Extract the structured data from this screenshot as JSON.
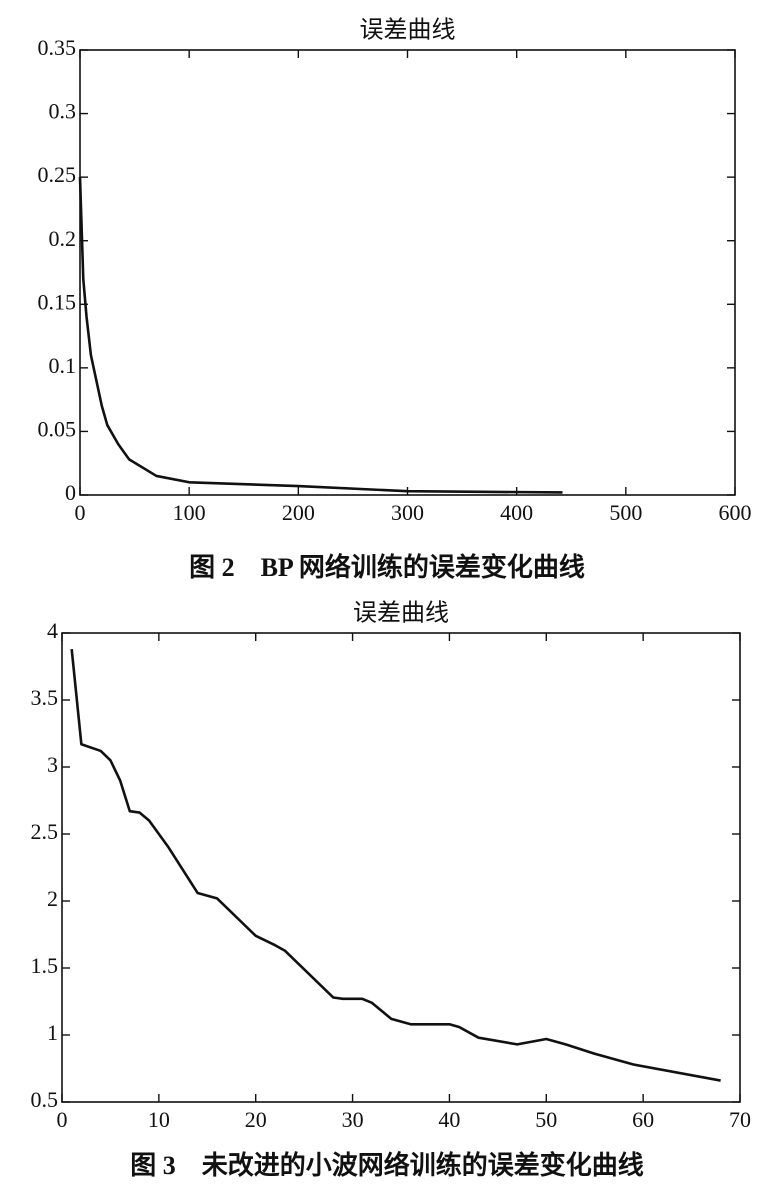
{
  "chart_data": [
    {
      "type": "line",
      "title": "误差曲线",
      "caption": "图 2　BP 网络训练的误差变化曲线",
      "x": [
        0,
        3,
        6,
        10,
        15,
        20,
        25,
        35,
        45,
        70,
        100,
        200,
        300,
        442
      ],
      "values": [
        0.25,
        0.17,
        0.14,
        0.11,
        0.09,
        0.07,
        0.055,
        0.04,
        0.028,
        0.015,
        0.01,
        0.007,
        0.003,
        0.002
      ],
      "color": "#111111",
      "xlim": [
        0,
        600
      ],
      "xticks": [
        0,
        100,
        200,
        300,
        400,
        500,
        600
      ],
      "ylim": [
        0,
        0.35
      ],
      "yticks": [
        0,
        0.05,
        0.1,
        0.15,
        0.2,
        0.25,
        0.3,
        0.35
      ]
    },
    {
      "type": "line",
      "title": "误差曲线",
      "caption": "图 3　未改进的小波网络训练的误差变化曲线",
      "x": [
        1,
        2,
        4,
        5,
        6,
        7,
        8,
        9,
        11,
        14,
        16,
        17,
        20,
        22,
        23,
        28,
        29,
        31,
        32,
        34,
        36,
        40,
        41,
        43,
        47,
        50,
        52,
        55,
        59,
        68
      ],
      "values": [
        3.88,
        3.17,
        3.12,
        3.05,
        2.9,
        2.67,
        2.66,
        2.6,
        2.4,
        2.06,
        2.02,
        1.95,
        1.74,
        1.67,
        1.63,
        1.28,
        1.27,
        1.27,
        1.24,
        1.12,
        1.08,
        1.08,
        1.06,
        0.98,
        0.93,
        0.97,
        0.93,
        0.86,
        0.78,
        0.66
      ],
      "color": "#111111",
      "xlim": [
        0,
        70
      ],
      "xticks": [
        0,
        10,
        20,
        30,
        40,
        50,
        60,
        70
      ],
      "ylim": [
        0.5,
        4
      ],
      "yticks": [
        0.5,
        1,
        1.5,
        2,
        2.5,
        3,
        3.5,
        4
      ]
    }
  ]
}
